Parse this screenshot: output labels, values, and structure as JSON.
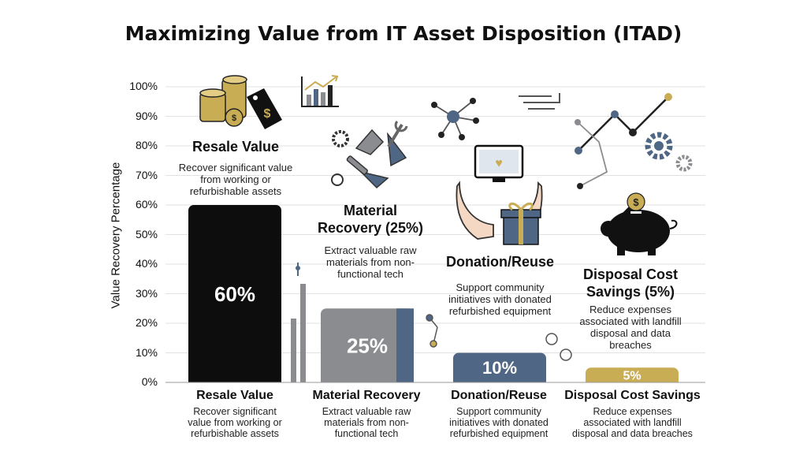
{
  "chart_data": {
    "type": "bar",
    "title": "Maximizing Value from IT Asset Disposition (ITAD)",
    "ylabel": "Value Recovery Percentage",
    "xlabel": "",
    "ylim": [
      0,
      100
    ],
    "yticks": [
      "0%",
      "10%",
      "20%",
      "30%",
      "40%",
      "50%",
      "60%",
      "70%",
      "80%",
      "90%",
      "100%"
    ],
    "grid": true,
    "categories": [
      "Resale Value",
      "Material Recovery",
      "Donation/Reuse",
      "Disposal Cost Savings"
    ],
    "values": [
      60,
      25,
      10,
      5
    ],
    "value_labels": [
      "60%",
      "25%",
      "10%",
      "5%"
    ],
    "colors": [
      "#0d0d0d",
      "#8a8c90",
      "#4f6784",
      "#c9ad55"
    ],
    "descriptions": [
      "Recover significant value from working or refurbishable assets",
      "Extract valuable raw materials from non-functional tech",
      "Support community initiatives with donated refurbished equipment",
      "Reduce expenses associated with landfill disposal and data breaches"
    ]
  },
  "captions": {
    "resale": {
      "title": "Resale Value",
      "desc": "Recover significant value from working or refurbishable assets"
    },
    "material": {
      "title1": "Material",
      "title2": "Recovery (25%)",
      "desc": "Extract valuable raw materials from non-functional tech"
    },
    "donation": {
      "title": "Donation/Reuse",
      "desc": "Support community initiatives with donated refurbished equipment"
    },
    "disposal": {
      "title1": "Disposal Cost",
      "title2": "Savings (5%)",
      "desc": "Reduce expenses associated with landfill disposal and data breaches"
    }
  },
  "bottom": {
    "resale": {
      "title": "Resale Value",
      "desc": "Recover significant value from working or refurbishable assets"
    },
    "material": {
      "title": "Material Recovery",
      "desc": "Extract valuable raw materials from non-functional tech"
    },
    "donation": {
      "title": "Donation/Reuse",
      "desc": "Support community initiatives with donated refurbished equipment"
    },
    "disposal": {
      "title": "Disposal Cost Savings",
      "desc": "Reduce expenses associated with landfill disposal and data breaches"
    }
  },
  "icons": [
    "coin-stack-icon",
    "price-tag-icon",
    "bar-chart-icon",
    "gear-icon",
    "recycle-icon",
    "wrench-icon",
    "network-icon",
    "monitor-heart-icon",
    "hands-icon",
    "gift-icon",
    "line-chart-icon",
    "piggy-bank-icon",
    "dollar-coin-icon"
  ],
  "icon_glyphs": {
    "dollar": "$",
    "heart": "♥"
  }
}
